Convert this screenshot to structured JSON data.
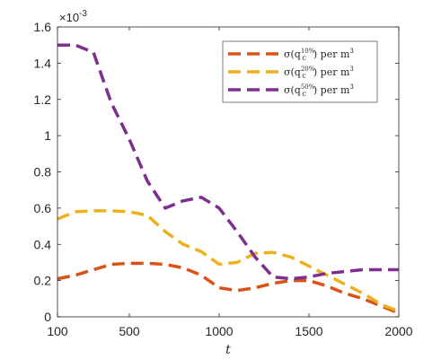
{
  "chart_data": {
    "type": "line",
    "title": "",
    "xlabel": "t",
    "ylabel": "",
    "xlim": [
      100,
      2000
    ],
    "ylim": [
      0,
      1.6
    ],
    "y_exponent_label": "×10",
    "y_exponent_power": "-3",
    "xticks": [
      100,
      500,
      1000,
      1500,
      2000
    ],
    "yticks": [
      0,
      0.2,
      0.4,
      0.6,
      0.8,
      1,
      1.2,
      1.4,
      1.6
    ],
    "xtick_labels": [
      "100",
      "500",
      "1000",
      "1500",
      "2000"
    ],
    "ytick_labels": [
      "0",
      "0.2",
      "0.4",
      "0.6",
      "0.8",
      "1",
      "1.2",
      "1.4",
      "1.6"
    ],
    "grid": false,
    "legend_position": "top-right",
    "series": [
      {
        "name": "σ(q_c^{10%}) per m^3",
        "legend_parts": {
          "pre": "σ(q",
          "sub": "c",
          "sup": "10%",
          "post": ") per m",
          "unit_sup": "3"
        },
        "color": "#D95319",
        "x": [
          100,
          200,
          300,
          400,
          500,
          600,
          700,
          800,
          900,
          1000,
          1100,
          1200,
          1300,
          1400,
          1500,
          1600,
          1700,
          1800,
          1900,
          2000
        ],
        "y": [
          0.21,
          0.23,
          0.26,
          0.29,
          0.295,
          0.295,
          0.29,
          0.27,
          0.23,
          0.16,
          0.145,
          0.16,
          0.185,
          0.2,
          0.2,
          0.17,
          0.13,
          0.1,
          0.06,
          0.02
        ]
      },
      {
        "name": "σ(q_c^{20%}) per m^3",
        "legend_parts": {
          "pre": "σ(q",
          "sub": "c",
          "sup": "20%",
          "post": ") per m",
          "unit_sup": "3"
        },
        "color": "#EDB120",
        "x": [
          100,
          200,
          300,
          400,
          500,
          600,
          700,
          800,
          900,
          1000,
          1100,
          1200,
          1300,
          1400,
          1500,
          1600,
          1700,
          1800,
          1900,
          2000
        ],
        "y": [
          0.54,
          0.58,
          0.585,
          0.585,
          0.58,
          0.56,
          0.47,
          0.4,
          0.36,
          0.29,
          0.3,
          0.35,
          0.355,
          0.33,
          0.28,
          0.23,
          0.18,
          0.13,
          0.07,
          0.03
        ]
      },
      {
        "name": "σ(q_c^{50%}) per m^3",
        "legend_parts": {
          "pre": "σ(q",
          "sub": "c",
          "sup": "50%",
          "post": ") per m",
          "unit_sup": "3"
        },
        "color": "#7E2F8E",
        "x": [
          100,
          200,
          300,
          400,
          500,
          600,
          700,
          800,
          900,
          1000,
          1100,
          1200,
          1300,
          1400,
          1500,
          1600,
          1700,
          1800,
          1900,
          2000
        ],
        "y": [
          1.5,
          1.5,
          1.46,
          1.18,
          0.98,
          0.75,
          0.6,
          0.64,
          0.66,
          0.6,
          0.47,
          0.33,
          0.22,
          0.21,
          0.22,
          0.24,
          0.25,
          0.26,
          0.26,
          0.26
        ]
      }
    ]
  }
}
